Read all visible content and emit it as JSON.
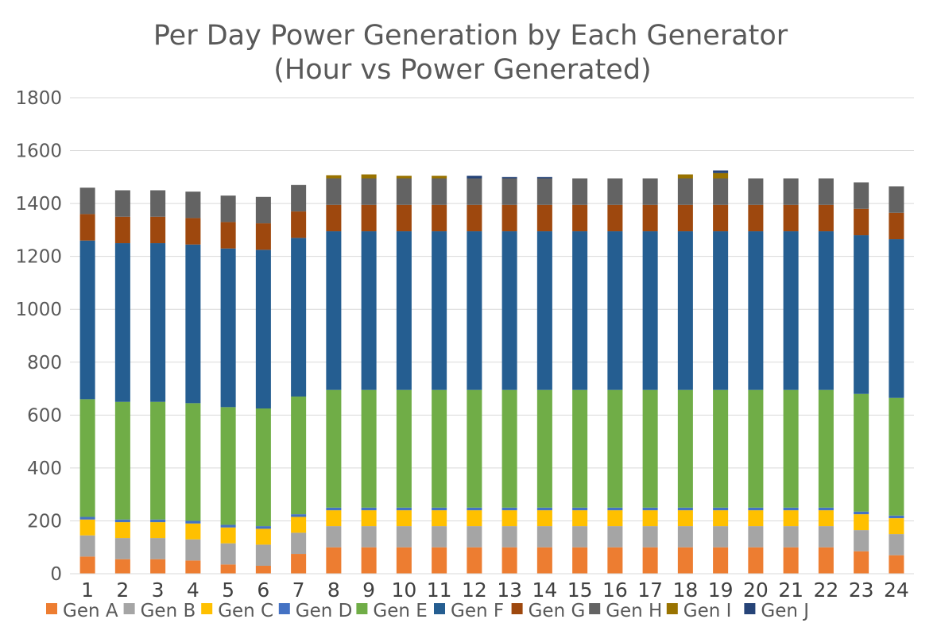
{
  "chart_data": {
    "type": "bar",
    "stacked": true,
    "title": "Per Day Power Generation by Each Generator",
    "subtitle": "(Hour vs Power Generated)",
    "xlabel": "",
    "ylabel": "",
    "ylim": [
      0,
      1800
    ],
    "yticks": [
      0,
      200,
      400,
      600,
      800,
      1000,
      1200,
      1400,
      1600,
      1800
    ],
    "grid": true,
    "legend": "bottom",
    "categories": [
      "1",
      "2",
      "3",
      "4",
      "5",
      "6",
      "7",
      "8",
      "9",
      "10",
      "11",
      "12",
      "13",
      "14",
      "15",
      "16",
      "17",
      "18",
      "19",
      "20",
      "21",
      "22",
      "23",
      "24"
    ],
    "series": [
      {
        "name": "Gen A",
        "color": "#ED7D31",
        "values": [
          65,
          55,
          55,
          50,
          35,
          30,
          75,
          100,
          100,
          100,
          100,
          100,
          100,
          100,
          100,
          100,
          100,
          100,
          100,
          100,
          100,
          100,
          85,
          70
        ]
      },
      {
        "name": "Gen B",
        "color": "#A5A5A5",
        "values": [
          80,
          80,
          80,
          80,
          80,
          80,
          80,
          80,
          80,
          80,
          80,
          80,
          80,
          80,
          80,
          80,
          80,
          80,
          80,
          80,
          80,
          80,
          80,
          80
        ]
      },
      {
        "name": "Gen C",
        "color": "#FFC000",
        "values": [
          60,
          60,
          60,
          60,
          60,
          60,
          60,
          60,
          60,
          60,
          60,
          60,
          60,
          60,
          60,
          60,
          60,
          60,
          60,
          60,
          60,
          60,
          60,
          60
        ]
      },
      {
        "name": "Gen D",
        "color": "#4472C4",
        "values": [
          10,
          10,
          10,
          10,
          10,
          10,
          10,
          10,
          10,
          10,
          10,
          10,
          10,
          10,
          10,
          10,
          10,
          10,
          10,
          10,
          10,
          10,
          10,
          10
        ]
      },
      {
        "name": "Gen E",
        "color": "#70AD47",
        "values": [
          445,
          445,
          445,
          445,
          445,
          445,
          445,
          445,
          445,
          445,
          445,
          445,
          445,
          445,
          445,
          445,
          445,
          445,
          445,
          445,
          445,
          445,
          445,
          445
        ]
      },
      {
        "name": "Gen F",
        "color": "#255E91",
        "values": [
          600,
          600,
          600,
          600,
          600,
          600,
          600,
          600,
          600,
          600,
          600,
          600,
          600,
          600,
          600,
          600,
          600,
          600,
          600,
          600,
          600,
          600,
          600,
          600
        ]
      },
      {
        "name": "Gen G",
        "color": "#9E480E",
        "values": [
          100,
          100,
          100,
          100,
          100,
          100,
          100,
          100,
          100,
          100,
          100,
          100,
          100,
          100,
          100,
          100,
          100,
          100,
          100,
          100,
          100,
          100,
          100,
          100
        ]
      },
      {
        "name": "Gen H",
        "color": "#636363",
        "values": [
          100,
          100,
          100,
          100,
          100,
          100,
          100,
          100,
          100,
          100,
          100,
          100,
          100,
          100,
          100,
          100,
          100,
          100,
          100,
          100,
          100,
          100,
          100,
          100
        ]
      },
      {
        "name": "Gen I",
        "color": "#997300",
        "values": [
          0,
          0,
          0,
          0,
          0,
          0,
          0,
          12,
          15,
          10,
          10,
          0,
          0,
          0,
          0,
          0,
          0,
          15,
          20,
          0,
          0,
          0,
          0,
          0
        ]
      },
      {
        "name": "Gen J",
        "color": "#264478",
        "values": [
          0,
          0,
          0,
          0,
          0,
          0,
          0,
          0,
          0,
          0,
          0,
          10,
          5,
          5,
          0,
          0,
          0,
          0,
          10,
          0,
          0,
          0,
          0,
          0
        ]
      }
    ]
  }
}
